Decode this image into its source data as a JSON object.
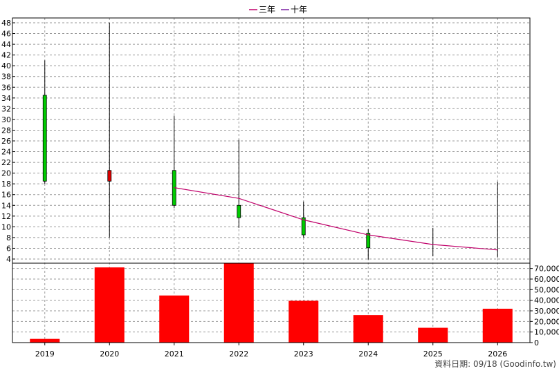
{
  "legend": [
    {
      "label": "三年",
      "color": "#c0006a"
    },
    {
      "label": "十年",
      "color": "#7b1fa2"
    }
  ],
  "footer": "資料日期: 09/18  (Goodinfo.tw)",
  "chart_data": {
    "type": "candlestick+bar",
    "categories": [
      "2019",
      "2020",
      "2021",
      "2022",
      "2023",
      "2024",
      "2025",
      "2026"
    ],
    "price_axis": {
      "ylim": [
        4,
        48
      ],
      "ticks": [
        4,
        6,
        8,
        10,
        12,
        14,
        16,
        18,
        20,
        22,
        24,
        26,
        28,
        30,
        32,
        34,
        36,
        38,
        40,
        42,
        44,
        46,
        48
      ],
      "grid": true
    },
    "candles": [
      {
        "x": "2019",
        "open": 18.5,
        "close": 34.5,
        "high": 41.0,
        "low": 18.0,
        "color": "#00cc00"
      },
      {
        "x": "2020",
        "open": 20.5,
        "close": 18.5,
        "high": 48.0,
        "low": 8.0,
        "color": "#dd0000"
      },
      {
        "x": "2021",
        "open": 14.0,
        "close": 20.5,
        "high": 30.7,
        "low": 13.5,
        "color": "#00cc00"
      },
      {
        "x": "2022",
        "open": 11.7,
        "close": 14.0,
        "high": 26.2,
        "low": 9.8,
        "color": "#00cc00"
      },
      {
        "x": "2023",
        "open": 8.5,
        "close": 11.7,
        "high": 14.7,
        "low": 8.0,
        "color": "#00cc00"
      },
      {
        "x": "2024",
        "open": 6.1,
        "close": 8.8,
        "high": 9.6,
        "low": 3.9,
        "color": "#00cc00"
      },
      {
        "x": "2025",
        "open": null,
        "close": null,
        "high": 9.8,
        "low": 4.5,
        "color": "#00cc00"
      },
      {
        "x": "2026",
        "open": null,
        "close": null,
        "high": 18.4,
        "low": 4.3,
        "color": "#00cc00"
      }
    ],
    "series": [
      {
        "name": "三年",
        "x": [
          "2021",
          "2022",
          "2023",
          "2024",
          "2025",
          "2026"
        ],
        "values": [
          17.3,
          15.3,
          11.3,
          8.5,
          6.7,
          5.7
        ],
        "color": "#c0006a"
      }
    ],
    "volume": {
      "ylim": [
        0,
        75000
      ],
      "ticks": [
        0,
        10000,
        20000,
        30000,
        40000,
        50000,
        60000,
        70000
      ],
      "tick_labels": [
        "0",
        "10,000",
        "20,000",
        "30,000",
        "40,000",
        "50,000",
        "60,000",
        "70,000"
      ],
      "values": [
        3500,
        71000,
        44500,
        77000,
        39500,
        26000,
        14000,
        32000
      ],
      "color": "#ff0000"
    }
  }
}
